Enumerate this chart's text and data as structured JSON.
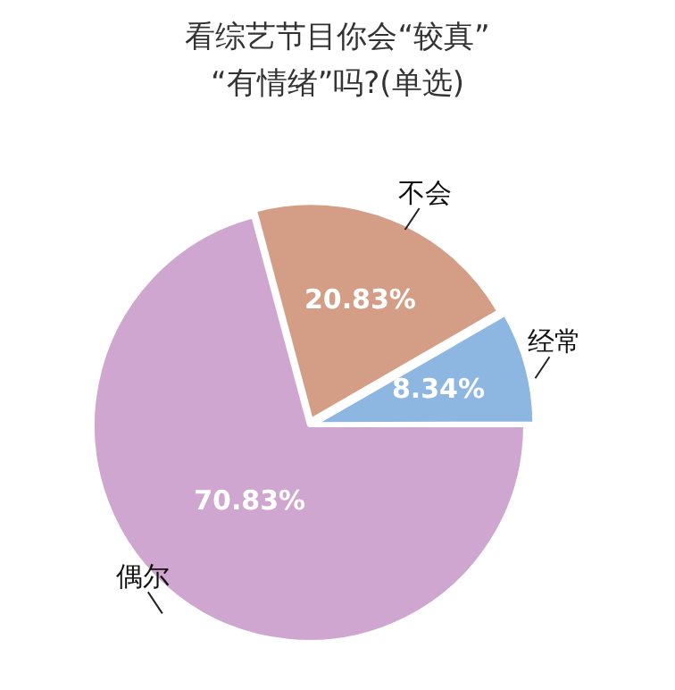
{
  "chart_data": {
    "type": "pie",
    "title": "看综艺节目你会“较真”\n“有情绪”吗?(单选)",
    "categories": [
      "不会",
      "经常",
      "偶尔"
    ],
    "values": [
      20.83,
      8.34,
      70.83
    ],
    "colors": [
      "#d49e86",
      "#8db7e1",
      "#cfa6cf"
    ],
    "value_labels": [
      "20.83%",
      "8.34%",
      "70.83%"
    ],
    "legend": false
  }
}
